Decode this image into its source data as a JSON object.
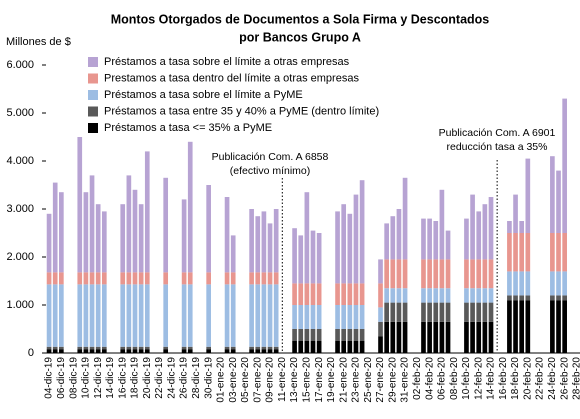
{
  "chart_data": {
    "type": "stacked_bar",
    "title": [
      "Montos Otorgados de Documentos a Sola Firma y Descontados",
      "por Bancos Grupo A"
    ],
    "y_label": "Millones de $",
    "ylim": [
      0,
      6000
    ],
    "yticks": [
      0,
      {
        "value": 1000,
        "label": "1.000"
      },
      {
        "value": 2000,
        "label": "2.000"
      },
      {
        "value": 3000,
        "label": "3.000"
      },
      {
        "value": 4000,
        "label": "4.000"
      },
      {
        "value": 5000,
        "label": "5.000"
      },
      {
        "value": 6000,
        "label": "6.000"
      }
    ],
    "legend": "top-left",
    "categories": [
      "04-dic-19",
      null,
      "06-dic-19",
      null,
      "08-dic-19",
      null,
      "10-dic-19",
      null,
      "12-dic-19",
      null,
      "14-dic-19",
      null,
      "16-dic-19",
      null,
      "18-dic-19",
      null,
      "20-dic-19",
      null,
      "22-dic-19",
      null,
      "24-dic-19",
      null,
      "26-dic-19",
      null,
      "28-dic-19",
      null,
      "30-dic-19",
      null,
      "01-ene-20",
      null,
      "03-ene-20",
      null,
      "05-ene-20",
      null,
      "07-ene-20",
      null,
      "09-ene-20",
      null,
      "11-ene-20",
      null,
      "13-ene-20",
      null,
      "15-ene-20",
      null,
      "17-ene-20",
      null,
      "19-ene-20",
      null,
      "21-ene-20",
      null,
      "23-ene-20",
      null,
      "25-ene-20",
      null,
      "27-ene-20",
      null,
      "29-ene-20",
      null,
      "31-ene-20",
      null,
      "02-feb-20",
      null,
      "04-feb-20",
      null,
      "06-feb-20",
      null,
      "08-feb-20",
      null,
      "10-feb-20",
      null,
      "12-feb-20",
      null,
      "14-feb-20",
      null,
      "16-feb-20",
      null,
      "18-feb-20",
      null,
      "20-feb-20",
      null,
      "22-feb-20",
      null,
      "24-feb-20",
      null,
      "26-feb-20",
      null,
      "28-feb-20"
    ],
    "series": [
      {
        "name": "Préstamos a tasa <= 35% a PyME",
        "color": "#000000",
        "values": [
          80,
          80,
          80,
          0,
          0,
          80,
          80,
          80,
          80,
          80,
          0,
          0,
          80,
          80,
          80,
          80,
          80,
          0,
          0,
          80,
          0,
          0,
          80,
          80,
          0,
          0,
          80,
          0,
          0,
          80,
          80,
          0,
          0,
          80,
          80,
          80,
          80,
          80,
          0,
          0,
          250,
          250,
          250,
          250,
          250,
          0,
          0,
          250,
          250,
          250,
          250,
          250,
          0,
          0,
          350,
          650,
          650,
          650,
          650,
          0,
          0,
          650,
          650,
          650,
          650,
          650,
          0,
          0,
          650,
          650,
          650,
          650,
          650,
          0,
          0,
          1100,
          1100,
          1100,
          1100,
          0,
          0,
          0,
          1100,
          1100,
          1100,
          0,
          0
        ]
      },
      {
        "name": "Préstamos a tasa entre 35 y 40% a PyME (dentro límite)",
        "color": "#595959",
        "values": [
          50,
          50,
          50,
          0,
          0,
          50,
          50,
          50,
          50,
          50,
          0,
          0,
          50,
          50,
          50,
          50,
          50,
          0,
          0,
          50,
          0,
          0,
          50,
          50,
          0,
          0,
          50,
          0,
          0,
          50,
          50,
          0,
          0,
          50,
          50,
          50,
          50,
          50,
          0,
          0,
          250,
          250,
          250,
          250,
          250,
          0,
          0,
          250,
          250,
          250,
          250,
          250,
          0,
          0,
          300,
          400,
          400,
          400,
          400,
          0,
          0,
          400,
          400,
          400,
          400,
          400,
          0,
          0,
          400,
          400,
          400,
          400,
          400,
          0,
          0,
          100,
          100,
          100,
          100,
          0,
          0,
          0,
          100,
          100,
          100,
          0,
          0
        ]
      },
      {
        "name": "Préstamos a tasa sobre el límite a PyME",
        "color": "#9dbde3",
        "values": [
          1300,
          1300,
          1300,
          0,
          0,
          1300,
          1300,
          1300,
          1300,
          1300,
          0,
          0,
          1300,
          1300,
          1300,
          1300,
          1300,
          0,
          0,
          1300,
          0,
          0,
          1300,
          1300,
          0,
          0,
          1300,
          0,
          0,
          1300,
          1300,
          0,
          0,
          1300,
          1300,
          1300,
          1300,
          1300,
          0,
          0,
          500,
          500,
          500,
          500,
          500,
          0,
          0,
          500,
          500,
          500,
          500,
          500,
          0,
          0,
          300,
          300,
          300,
          300,
          300,
          0,
          0,
          300,
          300,
          300,
          300,
          300,
          0,
          0,
          300,
          300,
          300,
          300,
          300,
          0,
          0,
          500,
          500,
          500,
          500,
          0,
          0,
          0,
          500,
          500,
          500,
          0,
          0
        ]
      },
      {
        "name": "Prestamos a tasa dentro del límite a otras empresas",
        "color": "#e8968f",
        "values": [
          250,
          250,
          250,
          0,
          0,
          250,
          250,
          250,
          250,
          250,
          0,
          0,
          250,
          250,
          250,
          250,
          250,
          0,
          0,
          250,
          0,
          0,
          250,
          250,
          0,
          0,
          250,
          0,
          0,
          250,
          250,
          0,
          0,
          250,
          250,
          250,
          250,
          250,
          0,
          0,
          450,
          450,
          450,
          450,
          450,
          0,
          0,
          450,
          450,
          450,
          450,
          450,
          0,
          0,
          500,
          600,
          600,
          600,
          600,
          0,
          0,
          600,
          600,
          600,
          600,
          600,
          0,
          0,
          600,
          600,
          600,
          600,
          600,
          0,
          0,
          800,
          800,
          800,
          800,
          0,
          0,
          0,
          800,
          800,
          800,
          0,
          0
        ]
      },
      {
        "name": "Préstamos a tasa sobre el límite a otras empresas",
        "color": "#b7a3d3",
        "values": [
          1220,
          1870,
          1670,
          0,
          0,
          2820,
          1670,
          2020,
          1420,
          1270,
          0,
          0,
          1420,
          2020,
          1720,
          1420,
          2520,
          0,
          0,
          1970,
          0,
          0,
          1520,
          2720,
          0,
          0,
          1820,
          0,
          0,
          1570,
          770,
          0,
          0,
          1320,
          1170,
          1270,
          1020,
          1320,
          0,
          0,
          1150,
          1000,
          1900,
          1100,
          1050,
          0,
          0,
          1500,
          1650,
          1450,
          1850,
          2150,
          0,
          0,
          500,
          750,
          900,
          1050,
          1700,
          0,
          0,
          850,
          850,
          800,
          1450,
          600,
          0,
          0,
          850,
          1350,
          1000,
          1150,
          1300,
          0,
          0,
          250,
          800,
          250,
          1550,
          0,
          0,
          0,
          1600,
          1300,
          2800,
          0,
          0
        ]
      }
    ],
    "annotations": [
      [
        "Publicación Com. A 6858",
        "(efectivo mínimo)"
      ],
      [
        "Publicación Com. A 6901",
        "reducción tasa a 35%"
      ]
    ]
  }
}
